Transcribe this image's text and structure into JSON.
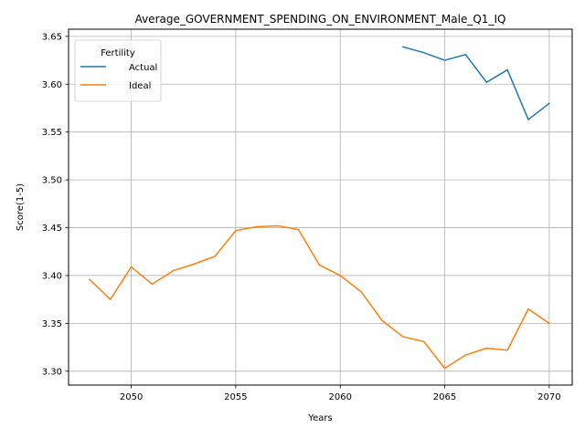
{
  "chart_data": {
    "type": "line",
    "title": "Average_GOVERNMENT_SPENDING_ON_ENVIRONMENT_Male_Q1_IQ",
    "xlabel": "Years",
    "ylabel": "Score(1-5)",
    "xlim": [
      2047.0,
      2071.1
    ],
    "ylim": [
      3.2855,
      3.6575
    ],
    "xticks": [
      2050,
      2055,
      2060,
      2065,
      2070
    ],
    "yticks": [
      3.3,
      3.35,
      3.4,
      3.45,
      3.5,
      3.55,
      3.6,
      3.65
    ],
    "xtick_labels": [
      "2050",
      "2055",
      "2060",
      "2065",
      "2070"
    ],
    "ytick_labels": [
      "3.30",
      "3.35",
      "3.40",
      "3.45",
      "3.50",
      "3.55",
      "3.60",
      "3.65"
    ],
    "grid": true,
    "legend": {
      "title": "Fertility",
      "placement": "top-left"
    },
    "series": [
      {
        "name": "Actual",
        "color": "#1f77b4",
        "x": [
          2063,
          2064,
          2065,
          2066,
          2067,
          2068,
          2069,
          2070
        ],
        "y": [
          3.639,
          3.633,
          3.625,
          3.631,
          3.602,
          3.615,
          3.563,
          3.58
        ]
      },
      {
        "name": "Ideal",
        "color": "#ff7f0e",
        "x": [
          2048,
          2049,
          2050,
          2051,
          2052,
          2053,
          2054,
          2055,
          2056,
          2057,
          2058,
          2059,
          2060,
          2061,
          2062,
          2063,
          2064,
          2065,
          2066,
          2067,
          2068,
          2069,
          2070
        ],
        "y": [
          3.396,
          3.375,
          3.409,
          3.391,
          3.405,
          3.412,
          3.42,
          3.447,
          3.451,
          3.452,
          3.448,
          3.411,
          3.4,
          3.383,
          3.353,
          3.336,
          3.331,
          3.303,
          3.317,
          3.324,
          3.322,
          3.365,
          3.35
        ]
      }
    ]
  }
}
